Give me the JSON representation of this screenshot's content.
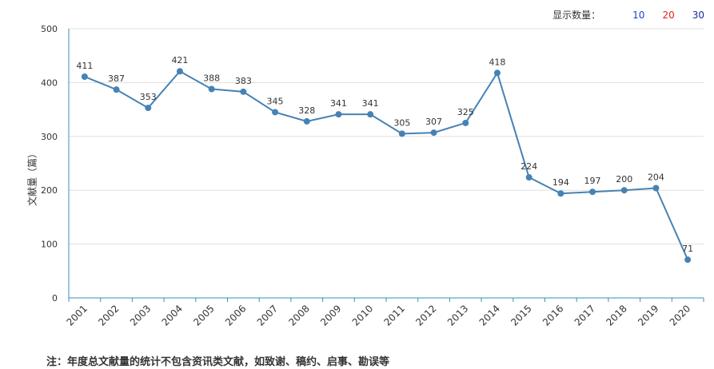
{
  "display_count": {
    "label": "显示数量：",
    "options": [
      {
        "label": "10",
        "color": "#1f3fd6"
      },
      {
        "label": "20",
        "color": "#e0201c"
      },
      {
        "label": "30",
        "color": "#1a2a9c"
      }
    ]
  },
  "footnote": "注：年度总文献量的统计不包含资讯类文献，如致谢、稿约、启事、勘误等",
  "chart_data": {
    "type": "line",
    "title": "",
    "xlabel": "",
    "ylabel": "文献量（篇）",
    "ylim": [
      0,
      500
    ],
    "yticks": [
      0,
      100,
      200,
      300,
      400,
      500
    ],
    "grid": true,
    "line_color": "#4682b4",
    "categories": [
      "2001",
      "2002",
      "2003",
      "2004",
      "2005",
      "2006",
      "2007",
      "2008",
      "2009",
      "2010",
      "2011",
      "2012",
      "2013",
      "2014",
      "2015",
      "2016",
      "2017",
      "2018",
      "2019",
      "2020"
    ],
    "values": [
      411,
      387,
      353,
      421,
      388,
      383,
      345,
      328,
      341,
      341,
      305,
      307,
      325,
      418,
      224,
      194,
      197,
      200,
      204,
      71
    ]
  }
}
